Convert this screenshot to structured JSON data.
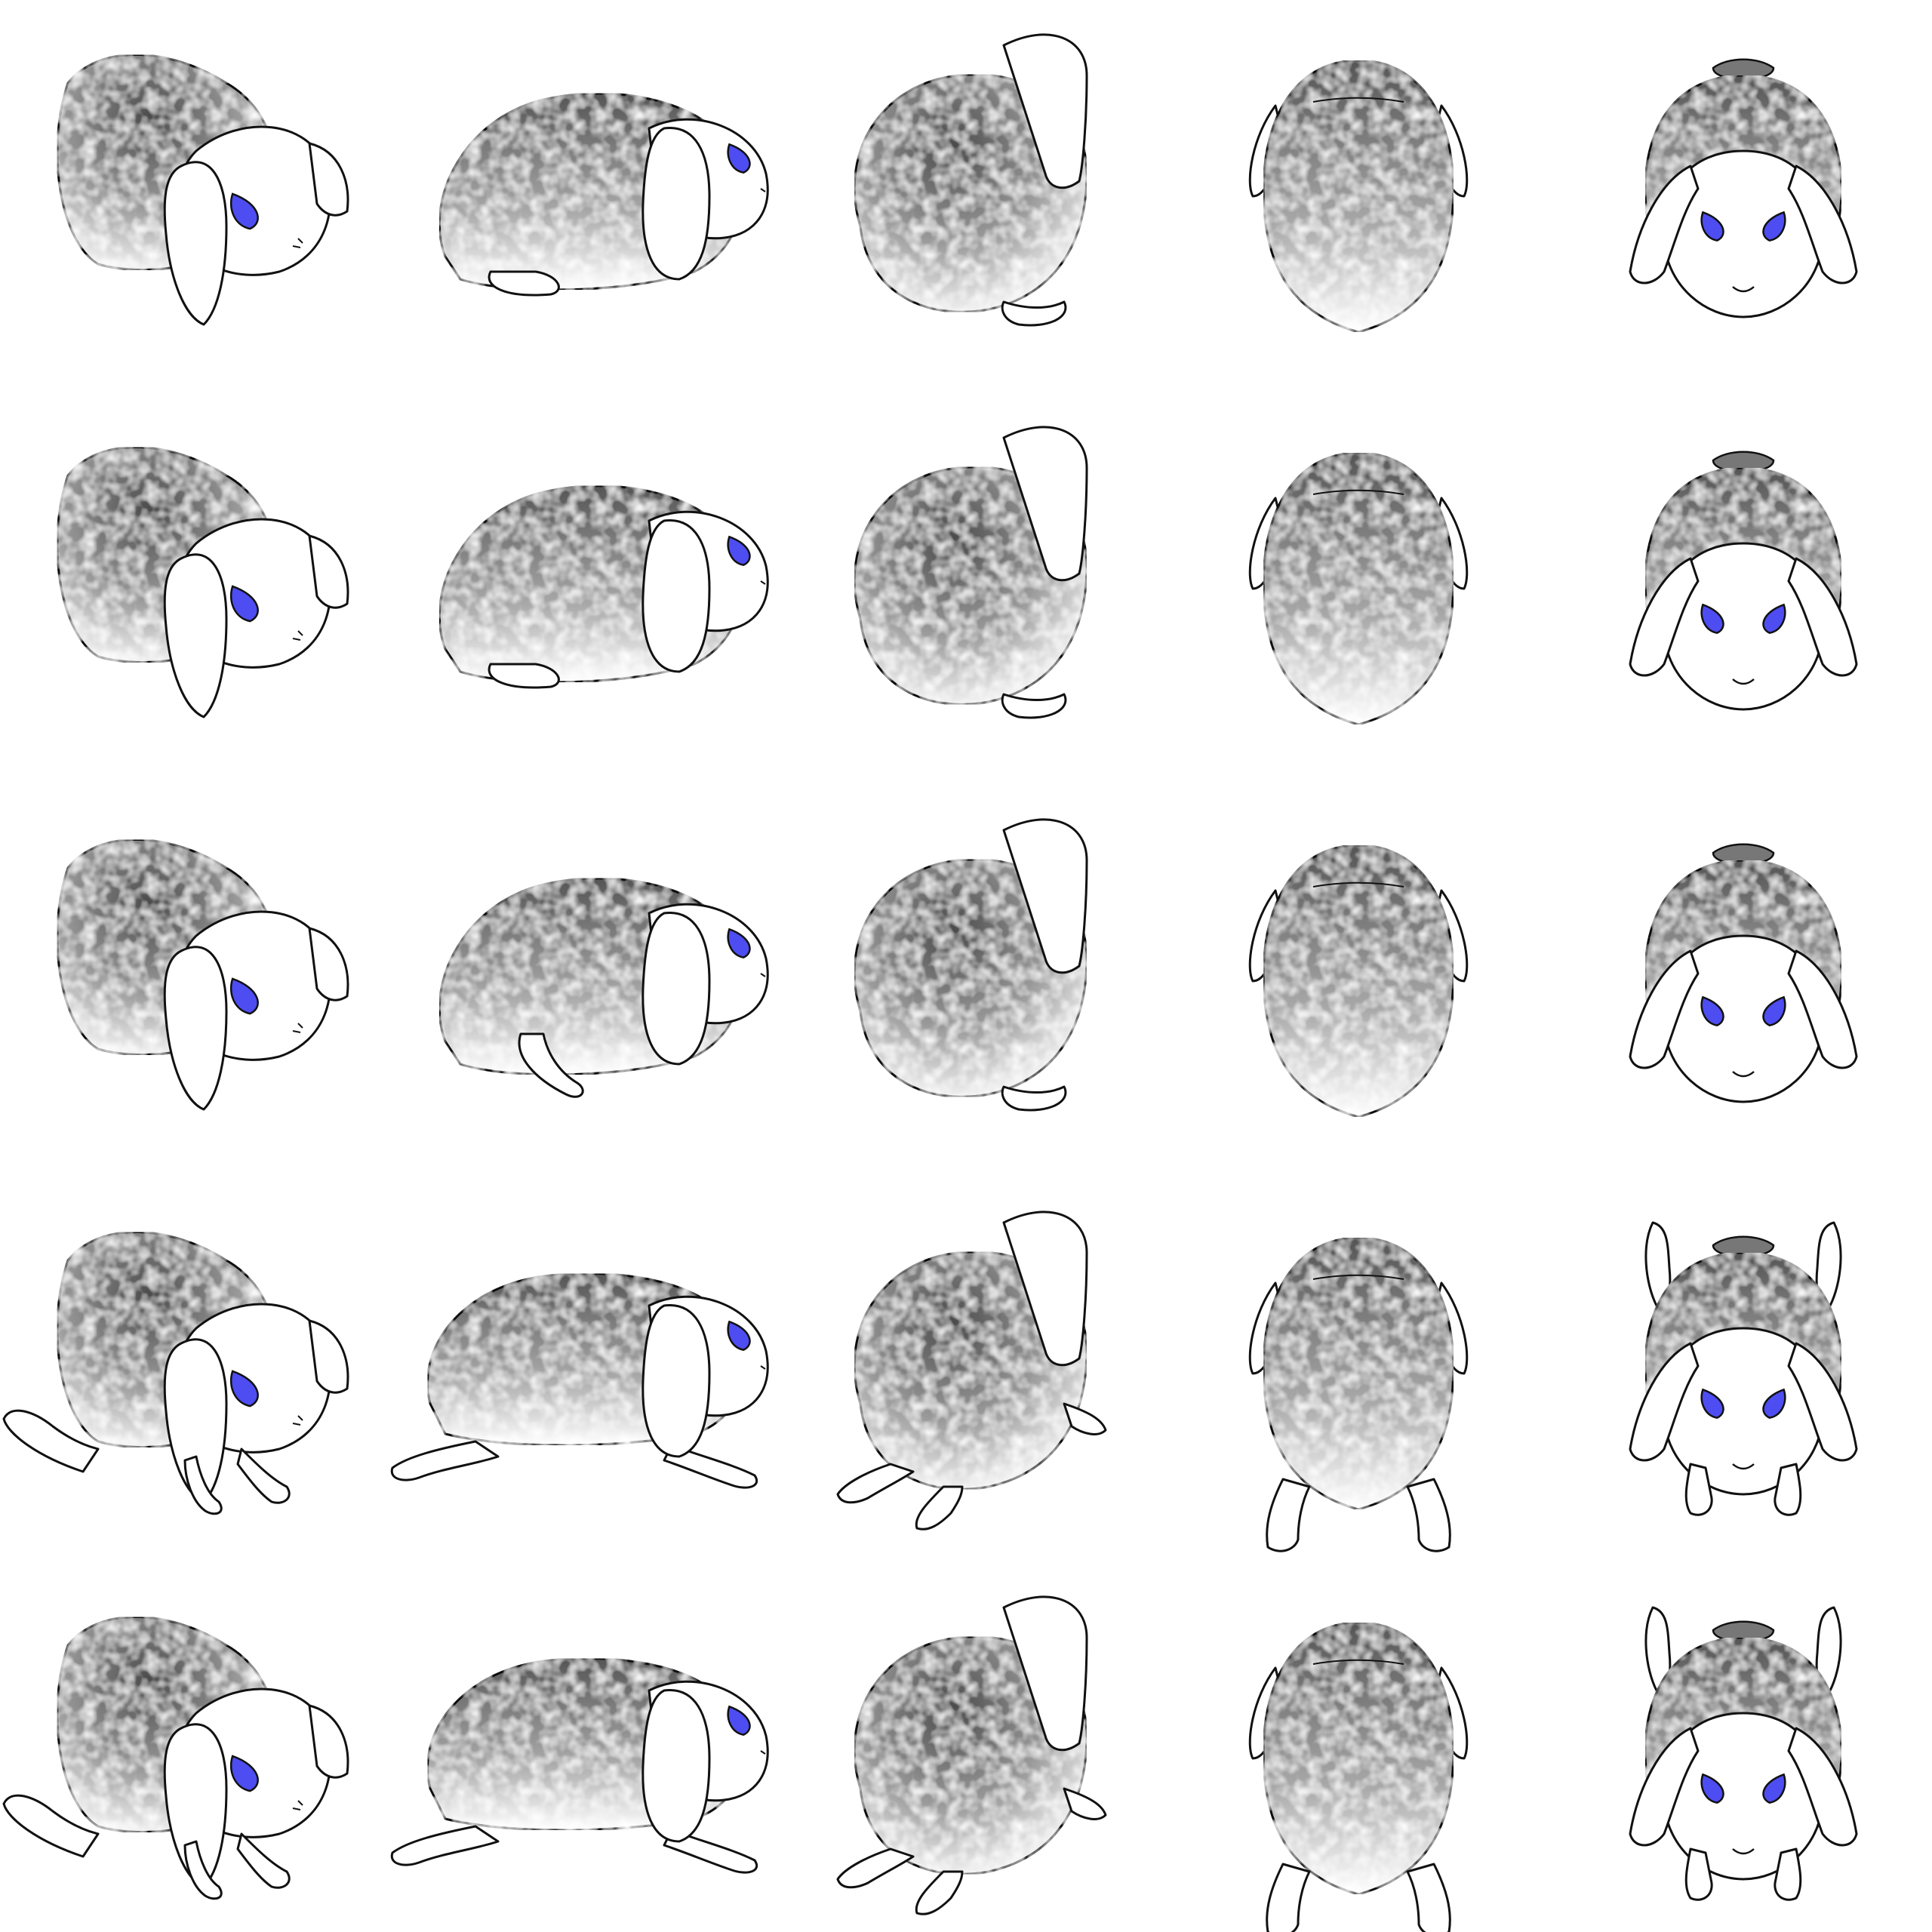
{
  "sheet": {
    "background": "#ffffff",
    "outline_color": "#111111",
    "fur_dark": "#4a4a4a",
    "fur_light": "#ffffff",
    "eye_color": "#4d4df2",
    "rows": [
      {
        "pose": "sitting"
      },
      {
        "pose": "sitting"
      },
      {
        "pose": "crouching"
      },
      {
        "pose": "stretching"
      },
      {
        "pose": "stretching"
      }
    ],
    "columns": [
      {
        "view": "three-quarter-front"
      },
      {
        "view": "side"
      },
      {
        "view": "three-quarter-back"
      },
      {
        "view": "back"
      },
      {
        "view": "front"
      }
    ]
  }
}
